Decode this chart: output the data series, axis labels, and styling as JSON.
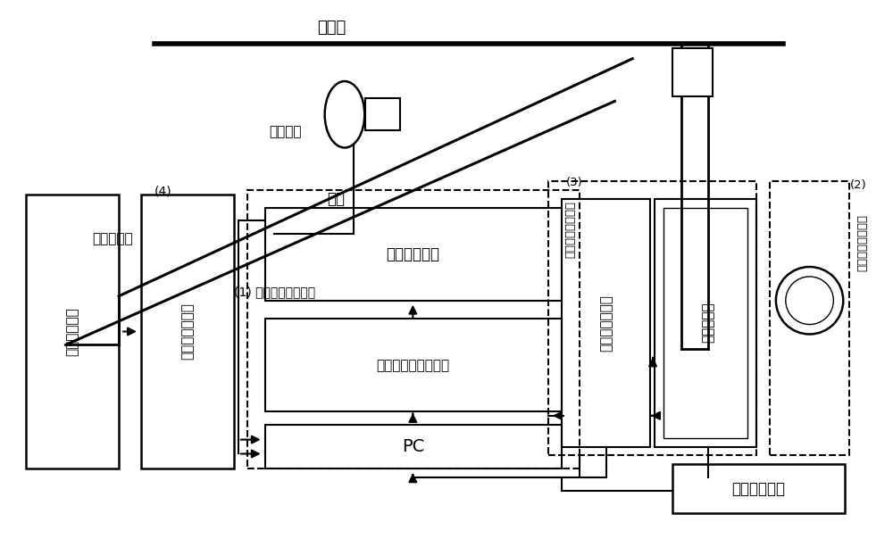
{
  "bg_color": "#ffffff",
  "figsize": [
    10.0,
    6.04
  ],
  "dpi": 100,
  "labels": {
    "contact_wire": "接触网",
    "arc": "弧网电弧",
    "pantograph": "受电弓滑板",
    "fiber": "光纤",
    "arc_spec_device": "(1) 电弧光谱测量装置",
    "phys_param_num": "(3)",
    "phys_param_txt": "物理参数测量装置",
    "elec_param_num": "(2)",
    "elec_param_txt": "电气参数测量装置",
    "linear_disp": "直线位移传感器",
    "data_acq": "数据采集卡",
    "arc_spec_disp": "电弧光谱显示",
    "spec_pos_adj": "光谱仪位置调整装置",
    "pc": "PC",
    "dc_power": "车载直流电源",
    "delay_gen": "数字延迟发生器",
    "label_4": "(4)",
    "other_devices": "车上其他装置"
  }
}
